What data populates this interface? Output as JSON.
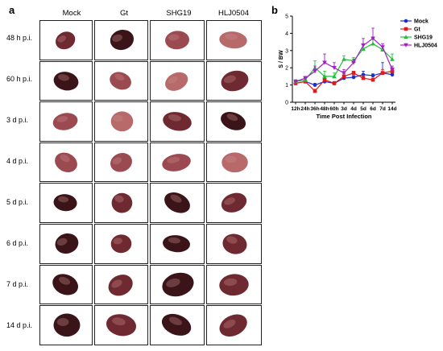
{
  "panels": {
    "a": "a",
    "b": "b"
  },
  "grid": {
    "columns": [
      "Mock",
      "Gt",
      "SHG19",
      "HLJ0504"
    ],
    "rows": [
      "48 h p.i.",
      "60 h p.i.",
      "3 d p.i.",
      "4 d p.i.",
      "5 d p.i.",
      "6 d p.i.",
      "7 d p.i.",
      "14 d p.i."
    ]
  },
  "colors": {
    "organ_dark": "#3a1418",
    "organ_mid": "#6e2a30",
    "organ_light": "#9a4a50",
    "organ_pale": "#b86a6a",
    "organ_highlight": "#c98a8a"
  },
  "chart_data": {
    "type": "line",
    "ylabel": "S / BW",
    "xlabel": "Time Post Infection",
    "categories": [
      "12h",
      "24h",
      "36h",
      "48h",
      "60h",
      "3d",
      "4d",
      "5d",
      "6d",
      "7d",
      "14d"
    ],
    "ylim": [
      0,
      5
    ],
    "yticks": [
      0,
      1,
      2,
      3,
      4,
      5
    ],
    "legend_position": "right",
    "series": [
      {
        "name": "Mock",
        "color": "#1a2fd0",
        "marker": "circle",
        "values": [
          1.1,
          1.2,
          1.0,
          1.2,
          1.1,
          1.4,
          1.45,
          1.6,
          1.55,
          1.7,
          1.6
        ],
        "err": [
          0.1,
          0.1,
          0.1,
          0.15,
          0.1,
          0.1,
          0.1,
          0.2,
          0.1,
          0.6,
          0.1
        ]
      },
      {
        "name": "Gt",
        "color": "#e01a1a",
        "marker": "square",
        "values": [
          1.1,
          1.2,
          0.65,
          1.3,
          1.1,
          1.5,
          1.7,
          1.4,
          1.3,
          1.7,
          1.8
        ],
        "err": [
          0.1,
          0.1,
          0.1,
          0.2,
          0.1,
          0.15,
          0.1,
          0.15,
          0.1,
          0.2,
          0.2
        ]
      },
      {
        "name": "SHG19",
        "color": "#1fbf3a",
        "marker": "triangle",
        "values": [
          1.2,
          1.3,
          2.0,
          1.5,
          1.5,
          2.5,
          2.4,
          3.1,
          3.4,
          3.05,
          2.5
        ],
        "err": [
          0.1,
          0.1,
          0.4,
          0.3,
          0.2,
          0.2,
          0.2,
          0.3,
          0.3,
          0.2,
          0.3
        ]
      },
      {
        "name": "HLJ0504",
        "color": "#a020c0",
        "marker": "triangle-down",
        "values": [
          1.2,
          1.4,
          1.8,
          2.3,
          2.0,
          1.7,
          2.3,
          3.3,
          3.7,
          3.2,
          1.9
        ],
        "err": [
          0.1,
          0.1,
          0.3,
          0.5,
          0.3,
          0.2,
          0.2,
          0.4,
          0.6,
          0.2,
          0.2
        ]
      }
    ]
  }
}
